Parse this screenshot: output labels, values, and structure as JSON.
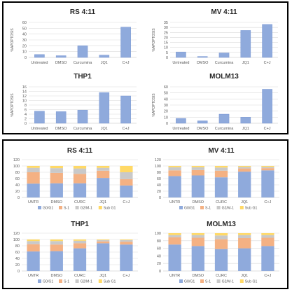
{
  "colors": {
    "bar": "#8faadc",
    "bar_edge": "#6f8fcf",
    "grid": "#d9d9d9",
    "axis_text": "#595959",
    "title": "#262626",
    "seg_g0g1": "#8faadc",
    "seg_s1": "#f4b183",
    "seg_g2m1": "#c9c9c9",
    "seg_subg1": "#ffd966"
  },
  "chart_data": [
    {
      "id": "rs411-apoptosis",
      "type": "bar",
      "title": "RS 4:11",
      "ylabel": "%APOPTOSIS",
      "categories": [
        "Untreated",
        "DMSO",
        "Curcumina",
        "JQ1",
        "C+J"
      ],
      "values": [
        5,
        3,
        20,
        4,
        52
      ],
      "ylim": [
        0,
        60
      ],
      "yticks": [
        "0",
        "10",
        "20",
        "30",
        "40",
        "50",
        "60"
      ],
      "grid": true
    },
    {
      "id": "mv411-apoptosis",
      "type": "bar",
      "title": "MV 4:11",
      "ylabel": "%APOPTOSIS",
      "categories": [
        "Untreated",
        "DMSO",
        "Curcumina",
        "JQ1",
        "C+J"
      ],
      "values": [
        5.5,
        1,
        4.5,
        27,
        33
      ],
      "ylim": [
        0,
        35
      ],
      "yticks": [
        "0",
        "5",
        "10",
        "15",
        "20",
        "25",
        "30",
        "35"
      ],
      "grid": true
    },
    {
      "id": "thp1-apoptosis",
      "type": "bar",
      "title": "THP1",
      "ylabel": "%APOPTOSIS",
      "categories": [
        "Untreated",
        "DMSO",
        "Curcumina",
        "JQ1",
        "C+J"
      ],
      "values": [
        5.3,
        5.1,
        5.8,
        13.5,
        12
      ],
      "ylim": [
        0,
        16
      ],
      "yticks": [
        "0",
        "2",
        "4",
        "6",
        "8",
        "10",
        "12",
        "14",
        "16"
      ],
      "grid": true
    },
    {
      "id": "molm13-apoptosis",
      "type": "bar",
      "title": "MOLM13",
      "ylabel": "%APOPTOSIS",
      "categories": [
        "Untreated",
        "DMSO",
        "Curcumina",
        "JQ1",
        "C+J"
      ],
      "values": [
        8,
        4,
        15,
        10,
        56
      ],
      "ylim": [
        0,
        60
      ],
      "yticks": [
        "0",
        "10",
        "20",
        "30",
        "40",
        "50",
        "60"
      ],
      "grid": true
    },
    {
      "id": "rs411-cellcycle",
      "type": "bar",
      "stacked": true,
      "title": "RS 4:11",
      "categories": [
        "UNTR",
        "DMSO",
        "CURC",
        "JQ1",
        "C+J"
      ],
      "series": [
        {
          "name": "G0/G1",
          "values": [
            44,
            45,
            45,
            62,
            38
          ]
        },
        {
          "name": "S-1",
          "values": [
            36,
            33,
            30,
            23,
            20
          ]
        },
        {
          "name": "G2/M-1",
          "values": [
            14,
            15,
            17,
            9,
            22
          ]
        },
        {
          "name": "Sub G1",
          "values": [
            6,
            7,
            8,
            6,
            20
          ]
        }
      ],
      "ylim": [
        0,
        120
      ],
      "yticks": [
        "0",
        "20",
        "40",
        "60",
        "80",
        "100",
        "120"
      ],
      "legend": "bottom",
      "grid": true
    },
    {
      "id": "mv411-cellcycle",
      "type": "bar",
      "stacked": true,
      "title": "MV 4:11",
      "categories": [
        "UNTR",
        "DMSO",
        "CURC",
        "JQ1",
        "C+J"
      ],
      "series": [
        {
          "name": "G0/G1",
          "values": [
            68,
            70,
            64,
            82,
            86
          ]
        },
        {
          "name": "S-1",
          "values": [
            18,
            17,
            21,
            10,
            7
          ]
        },
        {
          "name": "G2/M-1",
          "values": [
            10,
            9,
            10,
            5,
            4
          ]
        },
        {
          "name": "Sub G1",
          "values": [
            4,
            4,
            5,
            3,
            3
          ]
        }
      ],
      "ylim": [
        0,
        120
      ],
      "yticks": [
        "0",
        "20",
        "40",
        "60",
        "80",
        "100",
        "120"
      ],
      "legend": "bottom",
      "grid": true
    },
    {
      "id": "thp1-cellcycle",
      "type": "bar",
      "stacked": true,
      "title": "THP1",
      "categories": [
        "UNTR",
        "DMSO",
        "CURC",
        "JQ1",
        "C+J"
      ],
      "series": [
        {
          "name": "G0/G1",
          "values": [
            62,
            63,
            72,
            88,
            84
          ]
        },
        {
          "name": "S-1",
          "values": [
            23,
            21,
            16,
            6,
            9
          ]
        },
        {
          "name": "G2/M-1",
          "values": [
            10,
            11,
            8,
            4,
            5
          ]
        },
        {
          "name": "Sub G1",
          "values": [
            5,
            5,
            4,
            2,
            2
          ]
        }
      ],
      "ylim": [
        0,
        120
      ],
      "yticks": [
        "0",
        "20",
        "40",
        "60",
        "80",
        "100",
        "120"
      ],
      "legend": "bottom",
      "grid": true
    },
    {
      "id": "molm13-cellcycle",
      "type": "bar",
      "stacked": true,
      "title": "MOLM13",
      "categories": [
        "UNTR",
        "DMSO",
        "CURC",
        "JQ1",
        "C+J"
      ],
      "series": [
        {
          "name": "G0/G1",
          "values": [
            70,
            66,
            58,
            60,
            66
          ]
        },
        {
          "name": "S-1",
          "values": [
            19,
            22,
            26,
            27,
            22
          ]
        },
        {
          "name": "G2/M-1",
          "values": [
            6,
            7,
            10,
            8,
            7
          ]
        },
        {
          "name": "Sub G1",
          "values": [
            5,
            5,
            6,
            5,
            5
          ]
        }
      ],
      "ylim": [
        0,
        100
      ],
      "yticks": [
        "0",
        "20",
        "40",
        "60",
        "80",
        "100"
      ],
      "legend": "bottom",
      "grid": true
    }
  ]
}
